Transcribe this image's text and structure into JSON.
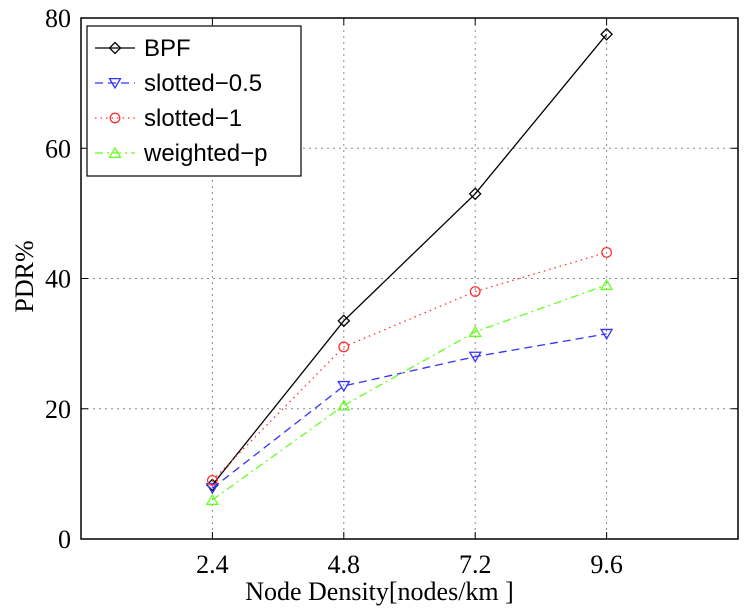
{
  "chart_data": {
    "type": "line",
    "title": "",
    "xlabel": "Node Density[nodes/km  ]",
    "ylabel": "PDR%",
    "x": [
      2.4,
      4.8,
      7.2,
      9.6
    ],
    "xlim": [
      0,
      12
    ],
    "ylim": [
      0,
      80
    ],
    "x_ticks": [
      "2.4",
      "4.8",
      "7.2",
      "9.6"
    ],
    "y_ticks": [
      "0",
      "20",
      "40",
      "60",
      "80"
    ],
    "grid": true,
    "legend_position": "top-left",
    "series": [
      {
        "name": "BPF",
        "values": [
          8.3,
          33.5,
          53,
          77.5
        ],
        "color": "#000000",
        "dash": "",
        "marker": "diamond"
      },
      {
        "name": "slotted−0.5",
        "values": [
          7.8,
          23.5,
          28,
          31.5
        ],
        "color": "#3333ff",
        "dash": "8 5",
        "marker": "triangle-down"
      },
      {
        "name": "slotted−1",
        "values": [
          9,
          29.5,
          38,
          44
        ],
        "color": "#ff3333",
        "dash": "1.5 4",
        "marker": "circle"
      },
      {
        "name": "weighted−p",
        "values": [
          6,
          20.5,
          31.8,
          39
        ],
        "color": "#66ff22",
        "dash": "8 4 2 4",
        "marker": "triangle-up"
      }
    ]
  }
}
